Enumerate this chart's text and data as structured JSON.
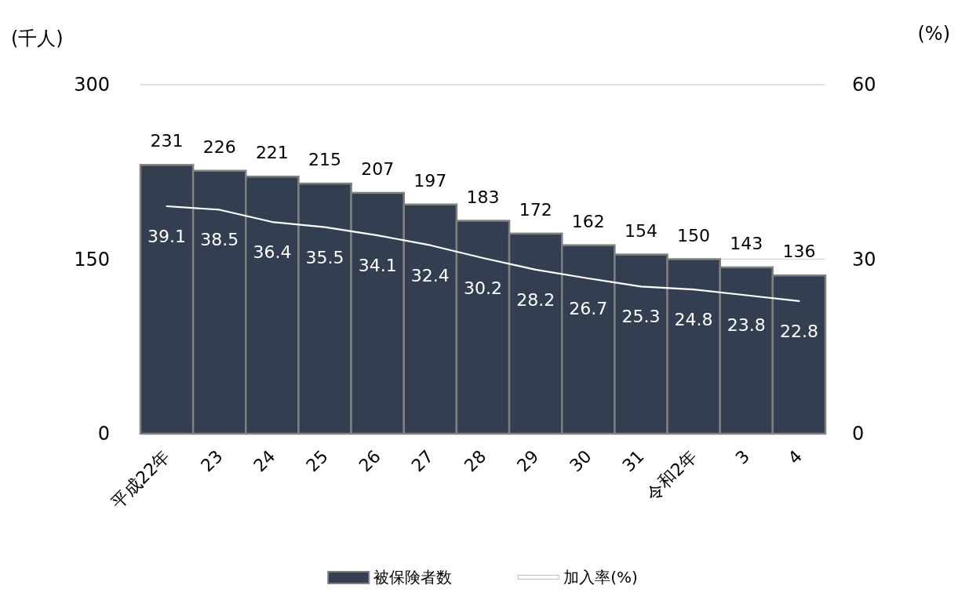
{
  "chart_data": {
    "type": "bar",
    "ylabel": "(千人)",
    "y2label": "(%)",
    "categories": [
      "平成22年",
      "23",
      "24",
      "25",
      "26",
      "27",
      "28",
      "29",
      "30",
      "31",
      "令和2年",
      "3",
      "4"
    ],
    "series": [
      {
        "name": "被保険者数",
        "color": "#333e50",
        "values": [
          231,
          226,
          221,
          215,
          207,
          197,
          183,
          172,
          162,
          154,
          150,
          143,
          136
        ]
      },
      {
        "name": "加入率(%)",
        "type": "line",
        "axis": "y2",
        "color": "#ffffff",
        "values": [
          39.1,
          38.5,
          36.4,
          35.5,
          34.1,
          32.4,
          30.2,
          28.2,
          26.7,
          25.3,
          24.8,
          23.8,
          22.8
        ]
      }
    ],
    "ylim": [
      0,
      300
    ],
    "yticks": [
      0,
      150,
      300
    ],
    "y2lim": [
      0,
      60
    ],
    "y2ticks": [
      0,
      30,
      60
    ],
    "grid": "y",
    "legend": "bottom",
    "data_labels": true
  }
}
